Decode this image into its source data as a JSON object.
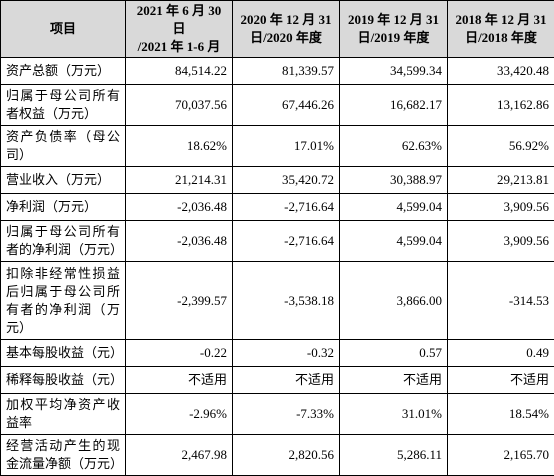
{
  "header": {
    "columns": [
      [
        "项目"
      ],
      [
        "2021 年 6 月 30 日",
        "/2021 年 1-6 月"
      ],
      [
        "2020 年 12 月 31",
        "日/2020 年度"
      ],
      [
        "2019 年 12 月 31",
        "日/2019 年度"
      ],
      [
        "2018 年 12 月 31",
        "日/2018 年度"
      ]
    ]
  },
  "table": {
    "rows": [
      [
        "资产总额（万元）",
        "84,514.22",
        "81,339.57",
        "34,599.34",
        "33,420.48"
      ],
      [
        "归属于母公司所有者权益（万元）",
        "70,037.56",
        "67,446.26",
        "16,682.17",
        "13,162.86"
      ],
      [
        "资产负债率（母公司）",
        "18.62%",
        "17.01%",
        "62.63%",
        "56.92%"
      ],
      [
        "营业收入（万元）",
        "21,214.31",
        "35,420.72",
        "30,388.97",
        "29,213.81"
      ],
      [
        "净利润（万元）",
        "-2,036.48",
        "-2,716.64",
        "4,599.04",
        "3,909.56"
      ],
      [
        "归属于母公司所有者的净利润（万元）",
        "-2,036.48",
        "-2,716.64",
        "4,599.04",
        "3,909.56"
      ],
      [
        "扣除非经常性损益后归属于母公司所有者的净利润（万元）",
        "-2,399.57",
        "-3,538.18",
        "3,866.00",
        "-314.53"
      ],
      [
        "基本每股收益（元）",
        "-0.22",
        "-0.32",
        "0.57",
        "0.49"
      ],
      [
        "稀释每股收益（元）",
        "不适用",
        "不适用",
        "不适用",
        "不适用"
      ],
      [
        "加权平均净资产收益率",
        "-2.96%",
        "-7.33%",
        "31.01%",
        "18.54%"
      ],
      [
        "经营活动产生的现金流量净额（万元）",
        "2,467.98",
        "2,820.56",
        "5,286.11",
        "2,165.70"
      ]
    ]
  }
}
